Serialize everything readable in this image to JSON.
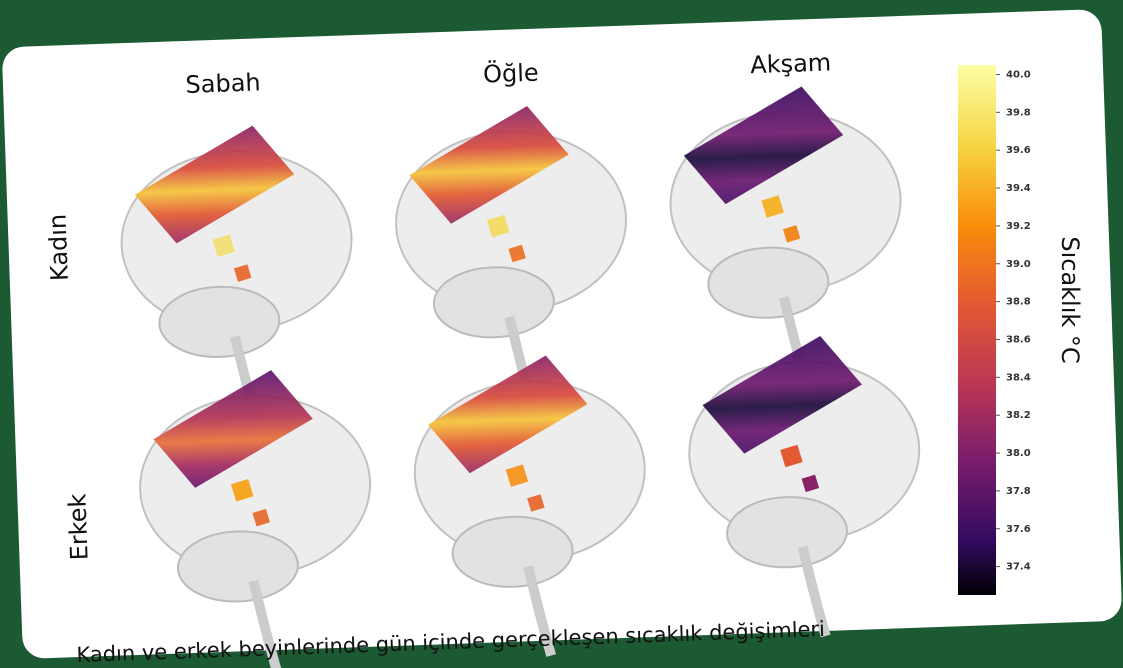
{
  "columns": [
    "Sabah",
    "Öğle",
    "Akşam"
  ],
  "rows": [
    "Kadın",
    "Erkek"
  ],
  "colorbar": {
    "label": "Sıcaklık °C",
    "range": [
      37.25,
      40.05
    ],
    "ticks": [
      {
        "value": 40.0,
        "label": "40.0"
      },
      39.8,
      39.6,
      39.4,
      39.2,
      {
        "value": 39.0,
        "label": "39.0"
      },
      38.8,
      38.6,
      38.4,
      38.2,
      {
        "value": 38.0,
        "label": "38.0"
      },
      37.8,
      37.6,
      37.4
    ]
  },
  "caption": "Kadın ve erkek beyinlerinde gün içinde gerçekleşen sıcaklık değişimleri"
}
